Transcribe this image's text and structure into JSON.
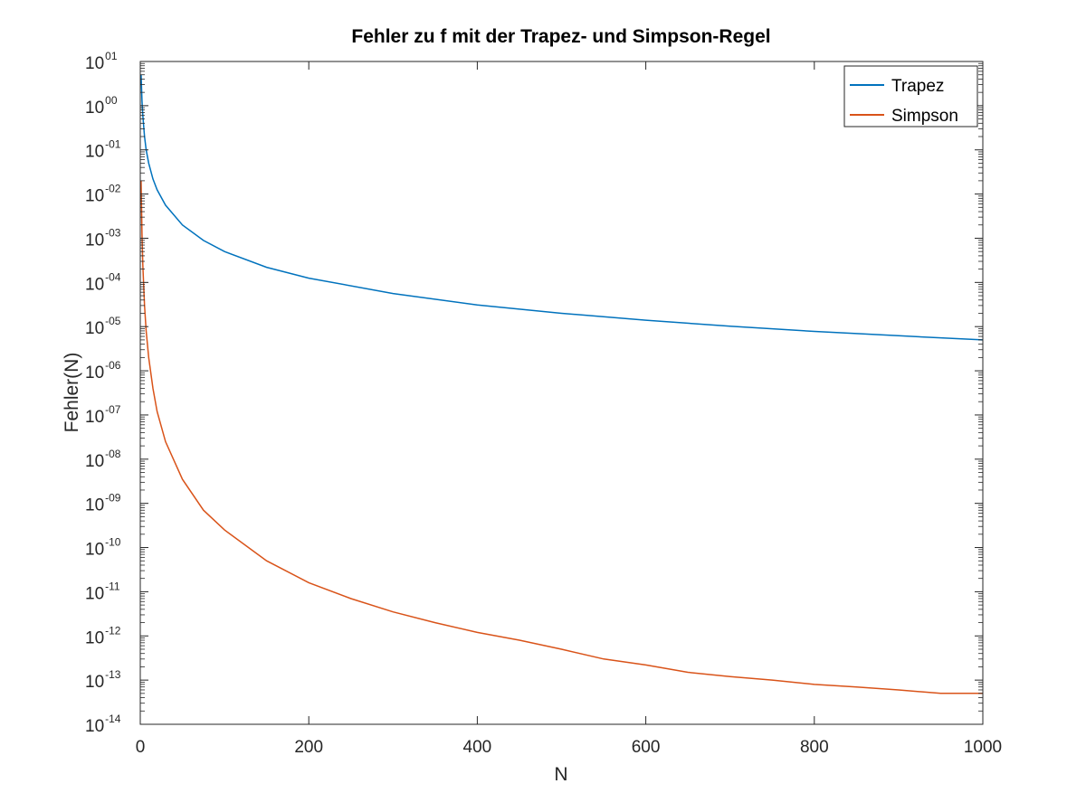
{
  "chart_data": {
    "type": "line",
    "title": "Fehler zu f mit der Trapez- und Simpson-Regel",
    "xlabel": "N",
    "ylabel": "Fehler(N)",
    "xlim": [
      0,
      1000
    ],
    "ylim": [
      1e-14,
      10.0
    ],
    "y_scale": "log",
    "grid": false,
    "box": true,
    "legend_position": "top-right",
    "x_ticks": [
      0,
      200,
      400,
      600,
      800,
      1000
    ],
    "x_tick_labels": [
      "0",
      "200",
      "400",
      "600",
      "800",
      "1000"
    ],
    "y_tick_labels": [
      {
        "base": "10",
        "exp": "01"
      },
      {
        "base": "10",
        "exp": "00"
      },
      {
        "base": "10",
        "exp": "-01"
      },
      {
        "base": "10",
        "exp": "-02"
      },
      {
        "base": "10",
        "exp": "-03"
      },
      {
        "base": "10",
        "exp": "-04"
      },
      {
        "base": "10",
        "exp": "-05"
      },
      {
        "base": "10",
        "exp": "-06"
      },
      {
        "base": "10",
        "exp": "-07"
      },
      {
        "base": "10",
        "exp": "-08"
      },
      {
        "base": "10",
        "exp": "-09"
      },
      {
        "base": "10",
        "exp": "-10"
      },
      {
        "base": "10",
        "exp": "-11"
      },
      {
        "base": "10",
        "exp": "-12"
      },
      {
        "base": "10",
        "exp": "-13"
      },
      {
        "base": "10",
        "exp": "-14"
      }
    ],
    "series": [
      {
        "name": "Trapez",
        "color": "#0072BD",
        "x": [
          1,
          2,
          3,
          5,
          7,
          10,
          15,
          20,
          30,
          50,
          75,
          100,
          150,
          200,
          300,
          400,
          500,
          600,
          700,
          800,
          900,
          1000
        ],
        "y": [
          5,
          1.3,
          0.6,
          0.2,
          0.1,
          0.05,
          0.022,
          0.0125,
          0.0056,
          0.002,
          0.00089,
          0.0005,
          0.00022,
          0.000125,
          5.6e-05,
          3.1e-05,
          2e-05,
          1.4e-05,
          1.02e-05,
          7.8e-06,
          6.2e-06,
          5e-06
        ]
      },
      {
        "name": "Simpson",
        "color": "#D95319",
        "x": [
          1,
          2,
          3,
          5,
          7,
          10,
          15,
          20,
          30,
          50,
          75,
          100,
          150,
          200,
          250,
          300,
          350,
          400,
          450,
          500,
          550,
          600,
          650,
          700,
          750,
          800,
          850,
          900,
          950,
          1000
        ],
        "y": [
          0.02,
          0.0013,
          0.00025,
          3e-05,
          8e-06,
          2e-06,
          4e-07,
          1.2e-07,
          2.5e-08,
          3.5e-09,
          7e-10,
          2.5e-10,
          5e-11,
          1.6e-11,
          7e-12,
          3.5e-12,
          2e-12,
          1.2e-12,
          8e-13,
          5e-13,
          3e-13,
          2.2e-13,
          1.5e-13,
          1.2e-13,
          1e-13,
          8e-14,
          7e-14,
          6e-14,
          5e-14,
          5e-14
        ]
      }
    ]
  }
}
